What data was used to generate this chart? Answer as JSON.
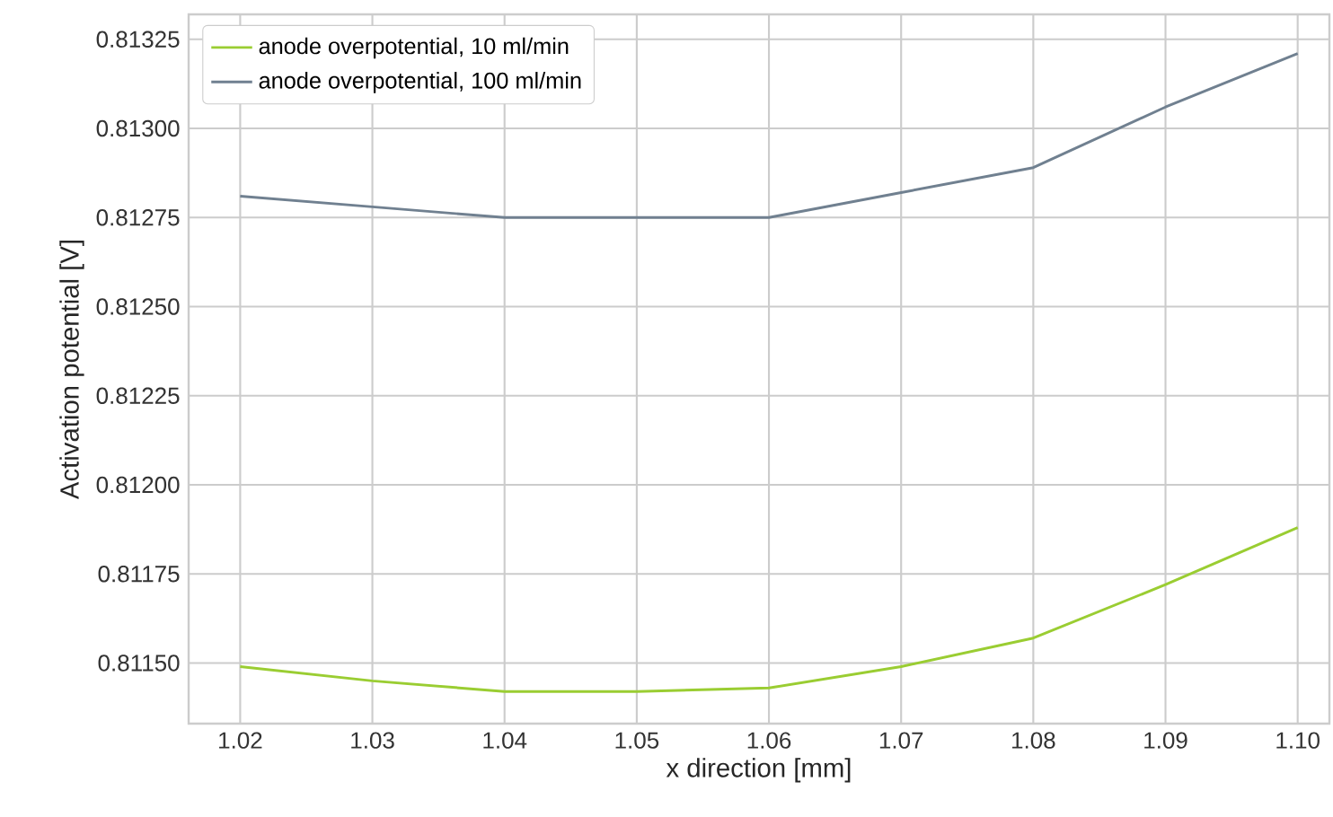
{
  "chart_data": {
    "type": "line",
    "xlabel": "x direction [mm]",
    "ylabel": "Activation potential [V]",
    "x": [
      1.02,
      1.03,
      1.04,
      1.05,
      1.06,
      1.07,
      1.08,
      1.09,
      1.1
    ],
    "series": [
      {
        "name": "anode overpotential, 10 ml/min",
        "color": "#9acd32",
        "values": [
          0.81149,
          0.81145,
          0.81142,
          0.81142,
          0.81143,
          0.81149,
          0.81157,
          0.81172,
          0.81188
        ]
      },
      {
        "name": "anode overpotential, 100 ml/min",
        "color": "#708090",
        "values": [
          0.81281,
          0.81278,
          0.81275,
          0.81275,
          0.81275,
          0.81282,
          0.81289,
          0.81306,
          0.81321
        ]
      }
    ],
    "xlim": [
      1.0161,
      1.1024
    ],
    "ylim": [
      0.81133,
      0.81332
    ],
    "xticks": [
      {
        "value": 1.02,
        "label": "1.02"
      },
      {
        "value": 1.03,
        "label": "1.03"
      },
      {
        "value": 1.04,
        "label": "1.04"
      },
      {
        "value": 1.05,
        "label": "1.05"
      },
      {
        "value": 1.06,
        "label": "1.06"
      },
      {
        "value": 1.07,
        "label": "1.07"
      },
      {
        "value": 1.08,
        "label": "1.08"
      },
      {
        "value": 1.09,
        "label": "1.09"
      },
      {
        "value": 1.1,
        "label": "1.10"
      }
    ],
    "yticks": [
      {
        "value": 0.8115,
        "label": "0.81150"
      },
      {
        "value": 0.81175,
        "label": "0.81175"
      },
      {
        "value": 0.812,
        "label": "0.81200"
      },
      {
        "value": 0.81225,
        "label": "0.81225"
      },
      {
        "value": 0.8125,
        "label": "0.81250"
      },
      {
        "value": 0.81275,
        "label": "0.81275"
      },
      {
        "value": 0.813,
        "label": "0.81300"
      },
      {
        "value": 0.81325,
        "label": "0.81325"
      }
    ],
    "grid": true,
    "legend": "top left",
    "marker": "none",
    "line_style": "solid"
  }
}
